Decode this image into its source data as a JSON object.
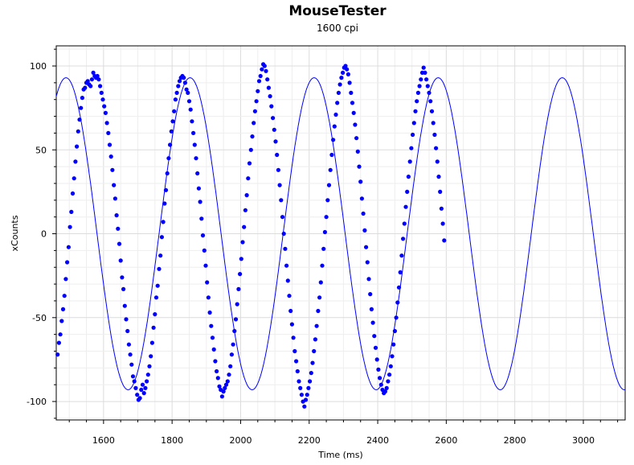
{
  "chart_data": {
    "type": "scatter",
    "title": "MouseTester",
    "subtitle": "1600 cpi",
    "xlabel": "Time (ms)",
    "ylabel": "xCounts",
    "xlim": [
      1462,
      3122
    ],
    "ylim": [
      -111,
      112
    ],
    "x_ticks": [
      1600,
      1800,
      2000,
      2200,
      2400,
      2600,
      2800,
      3000
    ],
    "y_ticks": [
      100,
      50,
      0,
      -50,
      -100
    ],
    "grid": true,
    "legend": "none",
    "series": [
      {
        "color": "#0000ff",
        "style": "markers+line",
        "fit_line": {
          "amplitude": 93,
          "period_ms": 362,
          "center_x_ms": 1400,
          "x_range": [
            1462,
            3122
          ]
        },
        "points": [
          [
            1466,
            -72
          ],
          [
            1470,
            -65
          ],
          [
            1474,
            -60
          ],
          [
            1478,
            -52
          ],
          [
            1482,
            -45
          ],
          [
            1486,
            -37
          ],
          [
            1490,
            -27
          ],
          [
            1494,
            -17
          ],
          [
            1498,
            -8
          ],
          [
            1502,
            4
          ],
          [
            1506,
            13
          ],
          [
            1510,
            24
          ],
          [
            1514,
            33
          ],
          [
            1518,
            43
          ],
          [
            1522,
            52
          ],
          [
            1526,
            61
          ],
          [
            1530,
            68
          ],
          [
            1534,
            75
          ],
          [
            1538,
            81
          ],
          [
            1542,
            86
          ],
          [
            1546,
            87
          ],
          [
            1550,
            90
          ],
          [
            1554,
            91
          ],
          [
            1558,
            89
          ],
          [
            1562,
            88
          ],
          [
            1566,
            92
          ],
          [
            1570,
            96
          ],
          [
            1574,
            94
          ],
          [
            1578,
            93
          ],
          [
            1582,
            94
          ],
          [
            1586,
            92
          ],
          [
            1590,
            88
          ],
          [
            1594,
            84
          ],
          [
            1598,
            80
          ],
          [
            1602,
            76
          ],
          [
            1606,
            72
          ],
          [
            1610,
            66
          ],
          [
            1614,
            60
          ],
          [
            1618,
            53
          ],
          [
            1622,
            46
          ],
          [
            1626,
            38
          ],
          [
            1630,
            29
          ],
          [
            1634,
            21
          ],
          [
            1638,
            11
          ],
          [
            1642,
            3
          ],
          [
            1646,
            -6
          ],
          [
            1650,
            -16
          ],
          [
            1654,
            -26
          ],
          [
            1658,
            -33
          ],
          [
            1662,
            -43
          ],
          [
            1666,
            -51
          ],
          [
            1670,
            -58
          ],
          [
            1674,
            -66
          ],
          [
            1678,
            -72
          ],
          [
            1682,
            -78
          ],
          [
            1686,
            -85
          ],
          [
            1690,
            -88
          ],
          [
            1694,
            -92
          ],
          [
            1698,
            -96
          ],
          [
            1702,
            -99
          ],
          [
            1706,
            -98
          ],
          [
            1710,
            -93
          ],
          [
            1714,
            -90
          ],
          [
            1718,
            -95
          ],
          [
            1722,
            -92
          ],
          [
            1726,
            -88
          ],
          [
            1730,
            -84
          ],
          [
            1734,
            -79
          ],
          [
            1738,
            -73
          ],
          [
            1742,
            -65
          ],
          [
            1746,
            -56
          ],
          [
            1750,
            -48
          ],
          [
            1754,
            -38
          ],
          [
            1758,
            -31
          ],
          [
            1762,
            -21
          ],
          [
            1766,
            -13
          ],
          [
            1770,
            -2
          ],
          [
            1774,
            7
          ],
          [
            1778,
            18
          ],
          [
            1782,
            26
          ],
          [
            1786,
            36
          ],
          [
            1790,
            45
          ],
          [
            1794,
            53
          ],
          [
            1798,
            61
          ],
          [
            1802,
            67
          ],
          [
            1806,
            73
          ],
          [
            1810,
            80
          ],
          [
            1814,
            84
          ],
          [
            1818,
            88
          ],
          [
            1822,
            91
          ],
          [
            1826,
            93
          ],
          [
            1830,
            94
          ],
          [
            1834,
            93
          ],
          [
            1838,
            90
          ],
          [
            1842,
            86
          ],
          [
            1846,
            84
          ],
          [
            1850,
            79
          ],
          [
            1854,
            74
          ],
          [
            1858,
            67
          ],
          [
            1862,
            60
          ],
          [
            1866,
            53
          ],
          [
            1870,
            45
          ],
          [
            1874,
            36
          ],
          [
            1878,
            27
          ],
          [
            1882,
            19
          ],
          [
            1886,
            9
          ],
          [
            1890,
            -1
          ],
          [
            1894,
            -10
          ],
          [
            1898,
            -19
          ],
          [
            1902,
            -29
          ],
          [
            1906,
            -38
          ],
          [
            1910,
            -47
          ],
          [
            1914,
            -55
          ],
          [
            1918,
            -62
          ],
          [
            1922,
            -69
          ],
          [
            1926,
            -76
          ],
          [
            1930,
            -82
          ],
          [
            1934,
            -86
          ],
          [
            1938,
            -91
          ],
          [
            1942,
            -93
          ],
          [
            1946,
            -97
          ],
          [
            1950,
            -94
          ],
          [
            1954,
            -92
          ],
          [
            1958,
            -90
          ],
          [
            1962,
            -88
          ],
          [
            1966,
            -84
          ],
          [
            1970,
            -79
          ],
          [
            1974,
            -72
          ],
          [
            1978,
            -66
          ],
          [
            1982,
            -58
          ],
          [
            1986,
            -51
          ],
          [
            1990,
            -42
          ],
          [
            1994,
            -33
          ],
          [
            1998,
            -24
          ],
          [
            2002,
            -15
          ],
          [
            2006,
            -5
          ],
          [
            2010,
            4
          ],
          [
            2014,
            14
          ],
          [
            2018,
            23
          ],
          [
            2022,
            33
          ],
          [
            2026,
            42
          ],
          [
            2030,
            50
          ],
          [
            2034,
            58
          ],
          [
            2038,
            66
          ],
          [
            2042,
            73
          ],
          [
            2046,
            79
          ],
          [
            2050,
            85
          ],
          [
            2054,
            91
          ],
          [
            2058,
            94
          ],
          [
            2062,
            98
          ],
          [
            2066,
            101
          ],
          [
            2070,
            100
          ],
          [
            2074,
            97
          ],
          [
            2078,
            92
          ],
          [
            2082,
            87
          ],
          [
            2086,
            82
          ],
          [
            2090,
            76
          ],
          [
            2094,
            69
          ],
          [
            2098,
            62
          ],
          [
            2102,
            55
          ],
          [
            2106,
            47
          ],
          [
            2110,
            38
          ],
          [
            2114,
            29
          ],
          [
            2118,
            20
          ],
          [
            2122,
            10
          ],
          [
            2126,
            0
          ],
          [
            2130,
            -9
          ],
          [
            2134,
            -19
          ],
          [
            2138,
            -28
          ],
          [
            2142,
            -37
          ],
          [
            2146,
            -46
          ],
          [
            2150,
            -54
          ],
          [
            2154,
            -62
          ],
          [
            2158,
            -70
          ],
          [
            2162,
            -76
          ],
          [
            2166,
            -82
          ],
          [
            2170,
            -88
          ],
          [
            2174,
            -92
          ],
          [
            2178,
            -96
          ],
          [
            2182,
            -100
          ],
          [
            2186,
            -103
          ],
          [
            2190,
            -99
          ],
          [
            2194,
            -96
          ],
          [
            2198,
            -92
          ],
          [
            2202,
            -88
          ],
          [
            2206,
            -83
          ],
          [
            2210,
            -77
          ],
          [
            2214,
            -70
          ],
          [
            2218,
            -63
          ],
          [
            2222,
            -55
          ],
          [
            2226,
            -46
          ],
          [
            2230,
            -38
          ],
          [
            2234,
            -29
          ],
          [
            2238,
            -19
          ],
          [
            2242,
            -9
          ],
          [
            2246,
            1
          ],
          [
            2250,
            10
          ],
          [
            2254,
            20
          ],
          [
            2258,
            29
          ],
          [
            2262,
            38
          ],
          [
            2266,
            47
          ],
          [
            2270,
            56
          ],
          [
            2274,
            64
          ],
          [
            2278,
            71
          ],
          [
            2282,
            78
          ],
          [
            2286,
            84
          ],
          [
            2290,
            89
          ],
          [
            2294,
            93
          ],
          [
            2298,
            96
          ],
          [
            2302,
            99
          ],
          [
            2306,
            100
          ],
          [
            2310,
            98
          ],
          [
            2314,
            95
          ],
          [
            2318,
            90
          ],
          [
            2322,
            84
          ],
          [
            2326,
            78
          ],
          [
            2330,
            72
          ],
          [
            2334,
            65
          ],
          [
            2338,
            57
          ],
          [
            2342,
            49
          ],
          [
            2346,
            40
          ],
          [
            2350,
            31
          ],
          [
            2354,
            21
          ],
          [
            2358,
            12
          ],
          [
            2362,
            2
          ],
          [
            2366,
            -8
          ],
          [
            2370,
            -17
          ],
          [
            2374,
            -27
          ],
          [
            2378,
            -36
          ],
          [
            2382,
            -45
          ],
          [
            2386,
            -53
          ],
          [
            2390,
            -61
          ],
          [
            2394,
            -68
          ],
          [
            2398,
            -75
          ],
          [
            2402,
            -81
          ],
          [
            2406,
            -86
          ],
          [
            2410,
            -90
          ],
          [
            2414,
            -93
          ],
          [
            2418,
            -95
          ],
          [
            2422,
            -94
          ],
          [
            2426,
            -92
          ],
          [
            2430,
            -88
          ],
          [
            2434,
            -84
          ],
          [
            2438,
            -79
          ],
          [
            2442,
            -73
          ],
          [
            2446,
            -66
          ],
          [
            2450,
            -58
          ],
          [
            2454,
            -50
          ],
          [
            2458,
            -41
          ],
          [
            2462,
            -32
          ],
          [
            2466,
            -23
          ],
          [
            2470,
            -13
          ],
          [
            2474,
            -3
          ],
          [
            2478,
            6
          ],
          [
            2482,
            16
          ],
          [
            2486,
            25
          ],
          [
            2490,
            34
          ],
          [
            2494,
            43
          ],
          [
            2498,
            51
          ],
          [
            2502,
            59
          ],
          [
            2506,
            66
          ],
          [
            2510,
            73
          ],
          [
            2514,
            79
          ],
          [
            2518,
            84
          ],
          [
            2522,
            88
          ],
          [
            2526,
            92
          ],
          [
            2530,
            96
          ],
          [
            2534,
            99
          ],
          [
            2538,
            96
          ],
          [
            2542,
            92
          ],
          [
            2546,
            88
          ],
          [
            2550,
            84
          ],
          [
            2554,
            79
          ],
          [
            2558,
            73
          ],
          [
            2562,
            66
          ],
          [
            2566,
            59
          ],
          [
            2570,
            51
          ],
          [
            2574,
            43
          ],
          [
            2578,
            34
          ],
          [
            2582,
            25
          ],
          [
            2586,
            15
          ],
          [
            2590,
            6
          ],
          [
            2594,
            -4
          ]
        ]
      }
    ]
  }
}
